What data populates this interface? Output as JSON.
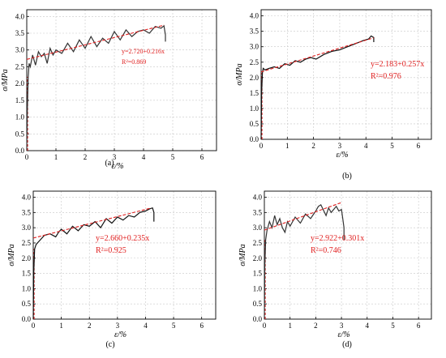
{
  "panel_labels": [
    "(a)",
    "(b)",
    "(c)",
    "(d)"
  ],
  "chart_data": [
    {
      "type": "line",
      "xlabel": "ε/%",
      "ylabel": "σ/MPa",
      "xlim": [
        0,
        6.5
      ],
      "ylim": [
        0,
        4.2
      ],
      "xticks": [
        "0",
        "1",
        "2",
        "3",
        "4",
        "5",
        "6"
      ],
      "yticks": [
        "0.0",
        "0.5",
        "1.0",
        "1.5",
        "2.0",
        "2.5",
        "3.0",
        "3.5",
        "4.0"
      ],
      "grid": true,
      "series": [
        {
          "color": "#333333",
          "style": "solid",
          "x": [
            0,
            0.02,
            0.05,
            0.08,
            0.12,
            0.2,
            0.3,
            0.4,
            0.5,
            0.6,
            0.7,
            0.8,
            0.9,
            1.0,
            1.2,
            1.4,
            1.6,
            1.8,
            2.0,
            2.2,
            2.4,
            2.6,
            2.8,
            3.0,
            3.2,
            3.4,
            3.6,
            3.8,
            4.0,
            4.2,
            4.4,
            4.6,
            4.7,
            4.75,
            4.75
          ],
          "y": [
            0,
            1.2,
            2.2,
            2.6,
            2.5,
            2.85,
            2.55,
            2.95,
            2.8,
            2.9,
            2.6,
            3.05,
            2.85,
            3.0,
            2.9,
            3.2,
            2.95,
            3.3,
            3.05,
            3.4,
            3.1,
            3.35,
            3.2,
            3.55,
            3.3,
            3.6,
            3.4,
            3.55,
            3.6,
            3.5,
            3.7,
            3.65,
            3.72,
            3.45,
            3.25
          ]
        },
        {
          "color": "#e02020",
          "style": "dashed",
          "x": [
            0,
            4.7
          ],
          "y": [
            2.72,
            3.74
          ]
        }
      ],
      "annotations": [
        "y=2.720+0.216x",
        "R²=0.869"
      ]
    },
    {
      "type": "line",
      "xlabel": "ε/%",
      "ylabel": "σ/MPa",
      "xlim": [
        0,
        6.5
      ],
      "ylim": [
        0,
        4.2
      ],
      "xticks": [
        "0",
        "1",
        "2",
        "3",
        "4",
        "5",
        "6"
      ],
      "yticks": [
        "0.0",
        "0.5",
        "1.0",
        "1.5",
        "2.0",
        "2.5",
        "3.0",
        "3.5",
        "4.0"
      ],
      "grid": true,
      "series": [
        {
          "color": "#111111",
          "style": "solid",
          "x": [
            0,
            0.02,
            0.05,
            0.08,
            0.15,
            0.3,
            0.5,
            0.7,
            0.9,
            1.1,
            1.3,
            1.5,
            1.7,
            1.9,
            2.1,
            2.4,
            2.7,
            3.0,
            3.3,
            3.6,
            3.9,
            4.1,
            4.2,
            4.3,
            4.3
          ],
          "y": [
            0,
            1.5,
            2.15,
            2.3,
            2.25,
            2.3,
            2.35,
            2.3,
            2.45,
            2.4,
            2.55,
            2.5,
            2.6,
            2.65,
            2.6,
            2.75,
            2.85,
            2.9,
            3.0,
            3.1,
            3.2,
            3.25,
            3.35,
            3.3,
            3.15
          ]
        },
        {
          "color": "#e02020",
          "style": "dashed",
          "x": [
            0,
            4.3
          ],
          "y": [
            2.183,
            3.288
          ]
        }
      ],
      "annotations": [
        "y=2.183+0.257x",
        "R²=0.976"
      ]
    },
    {
      "type": "line",
      "xlabel": "ε/%",
      "ylabel": "σ/MPa",
      "xlim": [
        0,
        6.5
      ],
      "ylim": [
        0,
        4.2
      ],
      "xticks": [
        "0",
        "1",
        "2",
        "3",
        "4",
        "5",
        "6"
      ],
      "yticks": [
        "0.0",
        "0.5",
        "1.0",
        "1.5",
        "2.0",
        "2.5",
        "3.0",
        "3.5",
        "4.0"
      ],
      "grid": true,
      "series": [
        {
          "color": "#111111",
          "style": "solid",
          "x": [
            0,
            0.02,
            0.05,
            0.1,
            0.2,
            0.4,
            0.6,
            0.8,
            0.9,
            1.0,
            1.2,
            1.4,
            1.6,
            1.8,
            2.0,
            2.2,
            2.4,
            2.6,
            2.8,
            3.0,
            3.2,
            3.4,
            3.6,
            3.8,
            4.0,
            4.15,
            4.25,
            4.3,
            4.3
          ],
          "y": [
            0,
            1.6,
            2.3,
            2.45,
            2.55,
            2.75,
            2.8,
            2.7,
            2.85,
            2.95,
            2.8,
            3.05,
            2.9,
            3.1,
            3.05,
            3.2,
            3.0,
            3.3,
            3.15,
            3.35,
            3.25,
            3.4,
            3.35,
            3.5,
            3.55,
            3.62,
            3.65,
            3.5,
            3.2
          ]
        },
        {
          "color": "#e02020",
          "style": "dashed",
          "x": [
            0,
            4.2
          ],
          "y": [
            2.66,
            3.647
          ]
        }
      ],
      "annotations": [
        "y=2.660+0.235x",
        "R²=0.925"
      ]
    },
    {
      "type": "line",
      "xlabel": "ε/%",
      "ylabel": "σ/MPa",
      "xlim": [
        0,
        6.5
      ],
      "ylim": [
        0,
        4.2
      ],
      "xticks": [
        "0",
        "1",
        "2",
        "3",
        "4",
        "5",
        "6"
      ],
      "yticks": [
        "0.0",
        "0.5",
        "1.0",
        "1.5",
        "2.0",
        "2.5",
        "3.0",
        "3.5",
        "4.0"
      ],
      "grid": true,
      "series": [
        {
          "color": "#333333",
          "style": "solid",
          "x": [
            0,
            0.02,
            0.05,
            0.1,
            0.2,
            0.3,
            0.4,
            0.5,
            0.6,
            0.7,
            0.8,
            0.9,
            1.0,
            1.2,
            1.4,
            1.6,
            1.8,
            2.0,
            2.1,
            2.2,
            2.4,
            2.5,
            2.6,
            2.8,
            2.9,
            3.0,
            3.05,
            3.1,
            3.1
          ],
          "y": [
            0,
            1.8,
            2.6,
            2.9,
            3.2,
            3.0,
            3.4,
            3.1,
            3.3,
            3.0,
            2.85,
            3.2,
            3.05,
            3.35,
            3.15,
            3.45,
            3.3,
            3.55,
            3.7,
            3.75,
            3.4,
            3.65,
            3.5,
            3.7,
            3.55,
            3.6,
            3.3,
            3.0,
            2.6
          ]
        },
        {
          "color": "#e02020",
          "style": "dashed",
          "x": [
            0,
            3.0
          ],
          "y": [
            2.922,
            3.825
          ]
        }
      ],
      "annotations": [
        "y=2.922+0.301x",
        "R²=0.746"
      ]
    }
  ]
}
